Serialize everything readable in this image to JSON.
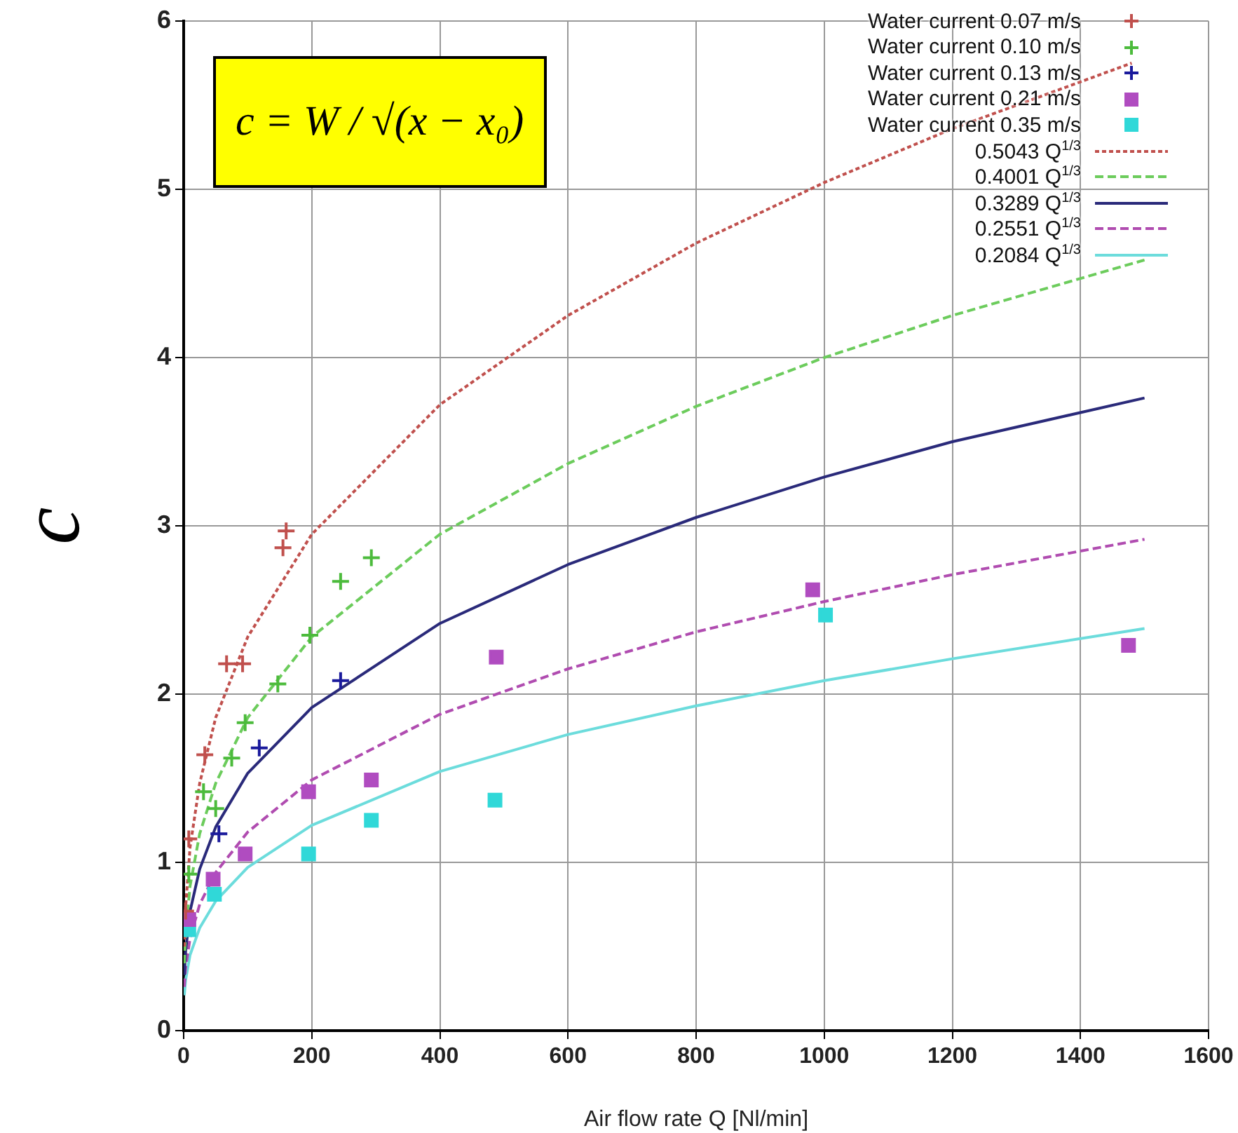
{
  "chart_data": {
    "type": "scatter",
    "xlabel": "Air flow rate Q [Nl/min]",
    "ylabel": "c",
    "xlim": [
      0,
      1600
    ],
    "xticks": [
      0,
      200,
      400,
      600,
      800,
      1000,
      1200,
      1400,
      1600
    ],
    "ylim": [
      0,
      6
    ],
    "yticks": [
      0,
      1,
      2,
      3,
      4,
      5,
      6
    ],
    "grid": true,
    "legend": "top right",
    "annotations": [
      "c = W / √(x − x₀)"
    ],
    "series": [
      {
        "name": "Water current 0.07 m/s",
        "color": "#c0504d",
        "marker": "cross",
        "x": [
          3,
          8,
          33,
          67,
          92,
          155,
          160
        ],
        "values": [
          0.71,
          1.14,
          1.64,
          2.18,
          2.18,
          2.87,
          2.97
        ]
      },
      {
        "name": "Water current 0.10 m/s",
        "color": "#4cbb3c",
        "marker": "cross",
        "x": [
          8,
          31,
          50,
          75,
          96,
          147,
          197,
          245,
          293
        ],
        "values": [
          0.93,
          1.42,
          1.32,
          1.62,
          1.83,
          2.06,
          2.35,
          2.67,
          2.81
        ]
      },
      {
        "name": "Water current 0.13 m/s",
        "color": "#1a1a9c",
        "marker": "cross",
        "x": [
          55,
          118,
          245
        ],
        "values": [
          1.17,
          1.68,
          2.08
        ]
      },
      {
        "name": "Water current 0.21 m/s",
        "color": "#b04cc0",
        "marker": "square",
        "x": [
          8,
          46,
          96,
          195,
          293,
          488,
          982,
          1475
        ],
        "values": [
          0.66,
          0.9,
          1.05,
          1.42,
          1.49,
          2.22,
          2.62,
          2.29
        ]
      },
      {
        "name": "Water current 0.35 m/s",
        "color": "#30d8d8",
        "marker": "square",
        "x": [
          8,
          48,
          195,
          293,
          486,
          1002
        ],
        "values": [
          0.6,
          0.81,
          1.05,
          1.25,
          1.37,
          2.47
        ]
      },
      {
        "name": "0.5043 Q$^{1/3}$",
        "type": "line",
        "color": "#c0504d",
        "marker": "none",
        "line_style": "dotted",
        "x": [
          1,
          3,
          10,
          25,
          50,
          100,
          200,
          400,
          600,
          800,
          1000,
          1200,
          1480
        ],
        "values": [
          0.5,
          0.73,
          1.09,
          1.47,
          1.86,
          2.34,
          2.95,
          3.72,
          4.25,
          4.68,
          5.04,
          5.36,
          5.75
        ]
      },
      {
        "name": "0.4001 Q$^{1/3}$",
        "type": "line",
        "color": "#6ccc5c",
        "marker": "none",
        "line_style": "dashed",
        "x": [
          1,
          3,
          10,
          25,
          50,
          100,
          200,
          400,
          600,
          800,
          1000,
          1200,
          1500
        ],
        "values": [
          0.4,
          0.58,
          0.86,
          1.17,
          1.47,
          1.86,
          2.34,
          2.95,
          3.37,
          3.71,
          4.0,
          4.25,
          4.58
        ]
      },
      {
        "name": "0.3289 Q$^{1/3}$",
        "type": "line",
        "color": "#2a2a7a",
        "marker": "none",
        "line_style": "solid",
        "x": [
          1,
          3,
          10,
          25,
          50,
          100,
          200,
          400,
          600,
          800,
          1000,
          1200,
          1500
        ],
        "values": [
          0.33,
          0.47,
          0.71,
          0.96,
          1.21,
          1.53,
          1.92,
          2.42,
          2.77,
          3.05,
          3.29,
          3.5,
          3.76
        ]
      },
      {
        "name": "0.2551 Q$^{1/3}$",
        "type": "line",
        "color": "#b04cb0",
        "marker": "none",
        "line_style": "dashed",
        "x": [
          1,
          3,
          10,
          25,
          50,
          100,
          200,
          400,
          600,
          800,
          1000,
          1200,
          1500
        ],
        "values": [
          0.26,
          0.37,
          0.55,
          0.75,
          0.94,
          1.18,
          1.49,
          1.88,
          2.15,
          2.37,
          2.55,
          2.71,
          2.92
        ]
      },
      {
        "name": "0.2084 Q$^{1/3}$",
        "type": "line",
        "color": "#6cdcdc",
        "marker": "none",
        "line_style": "solid",
        "x": [
          1,
          3,
          10,
          25,
          50,
          100,
          200,
          400,
          600,
          800,
          1000,
          1200,
          1500
        ],
        "values": [
          0.21,
          0.3,
          0.45,
          0.61,
          0.77,
          0.97,
          1.22,
          1.54,
          1.76,
          1.93,
          2.08,
          2.21,
          2.39
        ]
      }
    ]
  }
}
